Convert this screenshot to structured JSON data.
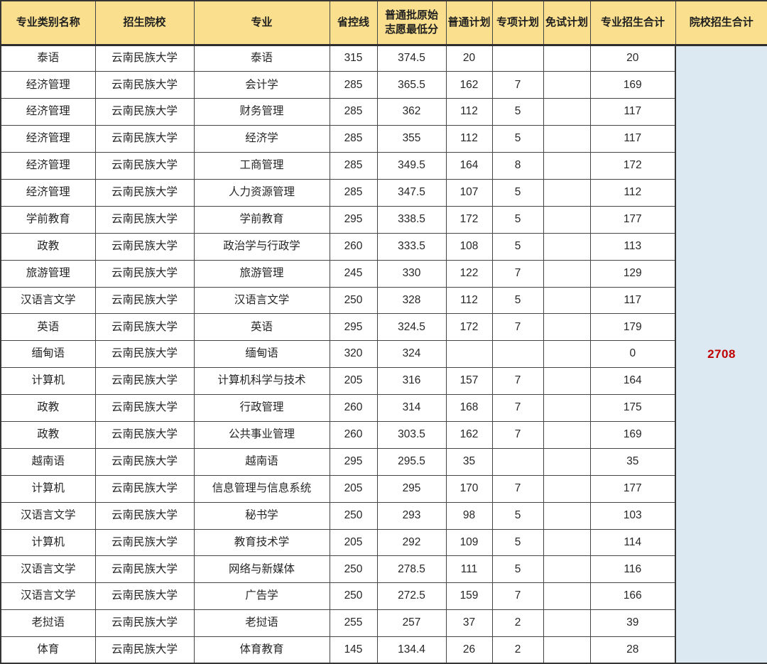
{
  "table": {
    "headers": [
      "专业类别名称",
      "招生院校",
      "专业",
      "省控线",
      "普通批原始\n志愿最低分",
      "普通计划",
      "专项计划",
      "免试计划",
      "专业招生合计",
      "院校招生合计"
    ],
    "rows": [
      [
        "泰语",
        "云南民族大学",
        "泰语",
        "315",
        "374.5",
        "20",
        "",
        "",
        "20"
      ],
      [
        "经济管理",
        "云南民族大学",
        "会计学",
        "285",
        "365.5",
        "162",
        "7",
        "",
        "169"
      ],
      [
        "经济管理",
        "云南民族大学",
        "财务管理",
        "285",
        "362",
        "112",
        "5",
        "",
        "117"
      ],
      [
        "经济管理",
        "云南民族大学",
        "经济学",
        "285",
        "355",
        "112",
        "5",
        "",
        "117"
      ],
      [
        "经济管理",
        "云南民族大学",
        "工商管理",
        "285",
        "349.5",
        "164",
        "8",
        "",
        "172"
      ],
      [
        "经济管理",
        "云南民族大学",
        "人力资源管理",
        "285",
        "347.5",
        "107",
        "5",
        "",
        "112"
      ],
      [
        "学前教育",
        "云南民族大学",
        "学前教育",
        "295",
        "338.5",
        "172",
        "5",
        "",
        "177"
      ],
      [
        "政教",
        "云南民族大学",
        "政治学与行政学",
        "260",
        "333.5",
        "108",
        "5",
        "",
        "113"
      ],
      [
        "旅游管理",
        "云南民族大学",
        "旅游管理",
        "245",
        "330",
        "122",
        "7",
        "",
        "129"
      ],
      [
        "汉语言文学",
        "云南民族大学",
        "汉语言文学",
        "250",
        "328",
        "112",
        "5",
        "",
        "117"
      ],
      [
        "英语",
        "云南民族大学",
        "英语",
        "295",
        "324.5",
        "172",
        "7",
        "",
        "179"
      ],
      [
        "缅甸语",
        "云南民族大学",
        "缅甸语",
        "320",
        "324",
        "",
        "",
        "",
        "0"
      ],
      [
        "计算机",
        "云南民族大学",
        "计算机科学与技术",
        "205",
        "316",
        "157",
        "7",
        "",
        "164"
      ],
      [
        "政教",
        "云南民族大学",
        "行政管理",
        "260",
        "314",
        "168",
        "7",
        "",
        "175"
      ],
      [
        "政教",
        "云南民族大学",
        "公共事业管理",
        "260",
        "303.5",
        "162",
        "7",
        "",
        "169"
      ],
      [
        "越南语",
        "云南民族大学",
        "越南语",
        "295",
        "295.5",
        "35",
        "",
        "",
        "35"
      ],
      [
        "计算机",
        "云南民族大学",
        "信息管理与信息系统",
        "205",
        "295",
        "170",
        "7",
        "",
        "177"
      ],
      [
        "汉语言文学",
        "云南民族大学",
        "秘书学",
        "250",
        "293",
        "98",
        "5",
        "",
        "103"
      ],
      [
        "计算机",
        "云南民族大学",
        "教育技术学",
        "205",
        "292",
        "109",
        "5",
        "",
        "114"
      ],
      [
        "汉语言文学",
        "云南民族大学",
        "网络与新媒体",
        "250",
        "278.5",
        "111",
        "5",
        "",
        "116"
      ],
      [
        "汉语言文学",
        "云南民族大学",
        "广告学",
        "250",
        "272.5",
        "159",
        "7",
        "",
        "166"
      ],
      [
        "老挝语",
        "云南民族大学",
        "老挝语",
        "255",
        "257",
        "37",
        "2",
        "",
        "39"
      ],
      [
        "体育",
        "云南民族大学",
        "体育教育",
        "145",
        "134.4",
        "26",
        "2",
        "",
        "28"
      ]
    ],
    "school_total": "2708"
  },
  "colors": {
    "header_bg": "#F9DF8E",
    "total_cell_bg": "#DCE8F2",
    "total_text": "#C00000",
    "body_text": "#262626",
    "border": "#454545"
  }
}
